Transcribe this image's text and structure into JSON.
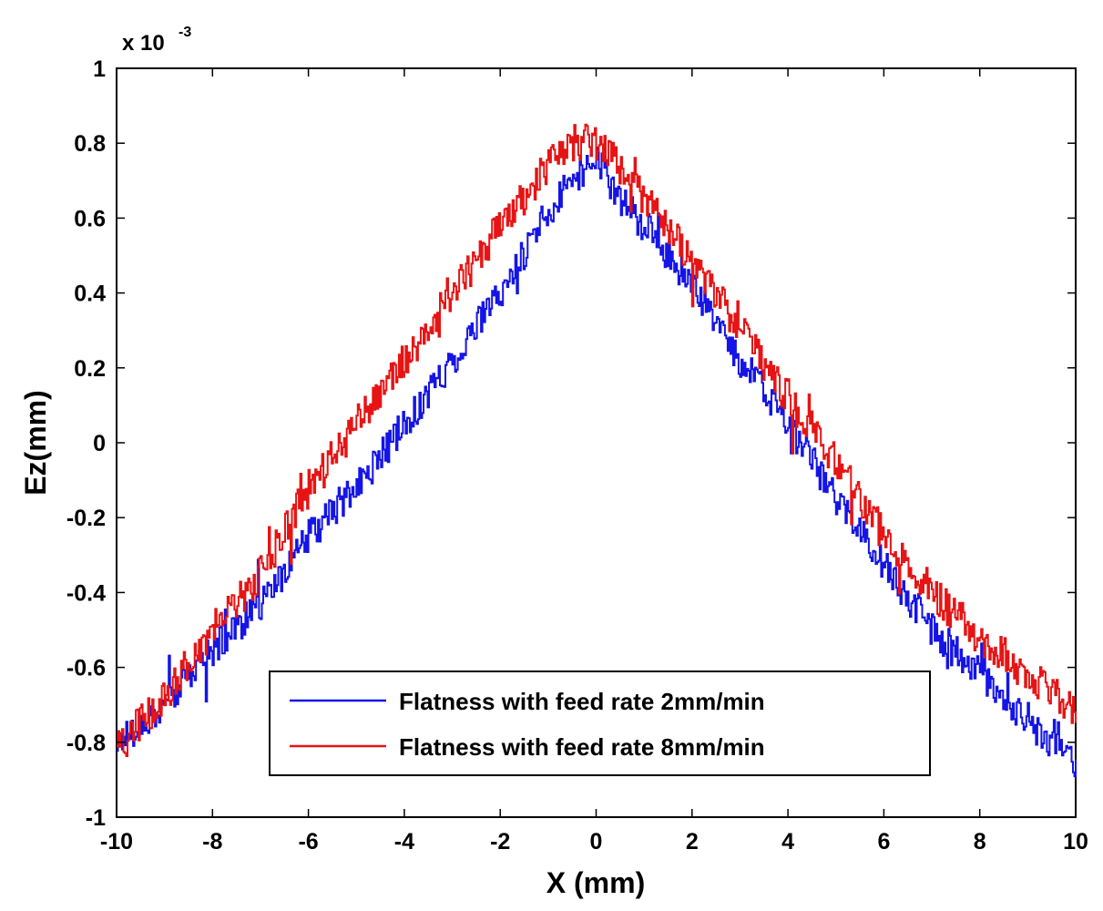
{
  "chart_data": {
    "type": "line",
    "title": "",
    "xlabel": "X (mm)",
    "ylabel": "Ez(mm)",
    "xlim": [
      -10,
      10
    ],
    "ylim": [
      -1,
      1
    ],
    "y_scale_exponent": "x 10",
    "y_scale_power": "-3",
    "grid": false,
    "legend_position": "bottom-center",
    "x_ticks": [
      "-10",
      "-8",
      "-6",
      "-4",
      "-2",
      "0",
      "2",
      "4",
      "6",
      "8",
      "10"
    ],
    "y_ticks": [
      "-1",
      "-0.8",
      "-0.6",
      "-0.4",
      "-0.2",
      "0",
      "0.2",
      "0.4",
      "0.6",
      "0.8",
      "1"
    ],
    "series": [
      {
        "name": "Flatness with feed rate 2mm/min",
        "color": "#1414e6",
        "x": [
          -10,
          -9,
          -8,
          -7,
          -6,
          -5,
          -4,
          -3,
          -2,
          -1,
          -0.5,
          0,
          0.5,
          1,
          2,
          3,
          4,
          5,
          6,
          7,
          8,
          9,
          10
        ],
        "y": [
          -0.8,
          -0.7,
          -0.55,
          -0.43,
          -0.25,
          -0.12,
          0.05,
          0.22,
          0.4,
          0.62,
          0.7,
          0.76,
          0.65,
          0.58,
          0.42,
          0.22,
          0.05,
          -0.15,
          -0.33,
          -0.5,
          -0.62,
          -0.75,
          -0.85
        ],
        "noise": 0.045
      },
      {
        "name": "Flatness with feed rate 8mm/min",
        "color": "#e61414",
        "x": [
          -10,
          -9,
          -8,
          -7,
          -6,
          -5,
          -4,
          -3,
          -2,
          -1,
          -0.5,
          0,
          0.5,
          1,
          2,
          3,
          4,
          5,
          6,
          7,
          8,
          9,
          10
        ],
        "y": [
          -0.82,
          -0.68,
          -0.5,
          -0.35,
          -0.12,
          0.05,
          0.22,
          0.4,
          0.58,
          0.74,
          0.8,
          0.8,
          0.74,
          0.65,
          0.48,
          0.3,
          0.12,
          -0.05,
          -0.25,
          -0.4,
          -0.52,
          -0.62,
          -0.72
        ],
        "noise": 0.05
      }
    ]
  }
}
